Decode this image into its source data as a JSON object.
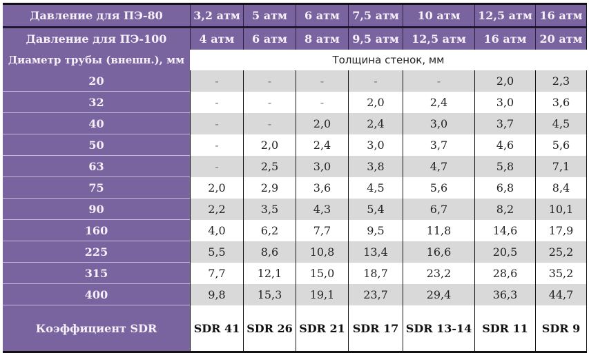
{
  "header": {
    "pe80_label": "Давление для ПЭ-80",
    "pe80_values": [
      "3,2 атм",
      "5 атм",
      "6 атм",
      "7,5 атм",
      "10 атм",
      "12,5 атм",
      "16 атм"
    ],
    "pe100_label": "Давление для ПЭ-100",
    "pe100_values": [
      "4 атм",
      "6 атм",
      "8 атм",
      "9,5 атм",
      "12,5 атм",
      "16 атм",
      "20 атм"
    ],
    "diameter_label": "Диаметр трубы (внешн.), мм",
    "thickness_label": "Толщина стенок, мм"
  },
  "rows": [
    {
      "d": "20",
      "v": [
        "-",
        "-",
        "-",
        "-",
        "-",
        "2,0",
        "2,3"
      ]
    },
    {
      "d": "32",
      "v": [
        "-",
        "-",
        "-",
        "2,0",
        "2,4",
        "3,0",
        "3,6"
      ]
    },
    {
      "d": "40",
      "v": [
        "-",
        "-",
        "2,0",
        "2,4",
        "3,0",
        "3,7",
        "4,5"
      ]
    },
    {
      "d": "50",
      "v": [
        "-",
        "2,0",
        "2,4",
        "3,0",
        "3,7",
        "4,6",
        "5,6"
      ]
    },
    {
      "d": "63",
      "v": [
        "-",
        "2,5",
        "3,0",
        "3,8",
        "4,7",
        "5,8",
        "7,1"
      ]
    },
    {
      "d": "75",
      "v": [
        "2,0",
        "2,9",
        "3,6",
        "4,5",
        "5,6",
        "6,8",
        "8,4"
      ]
    },
    {
      "d": "90",
      "v": [
        "2,2",
        "3,5",
        "4,3",
        "5,4",
        "6,7",
        "8,2",
        "10,1"
      ]
    },
    {
      "d": "160",
      "v": [
        "4,0",
        "6,2",
        "7,7",
        "9,5",
        "11,8",
        "14,6",
        "17,9"
      ]
    },
    {
      "d": "225",
      "v": [
        "5,5",
        "8,6",
        "10,8",
        "13,4",
        "16,6",
        "20,5",
        "25,2"
      ]
    },
    {
      "d": "315",
      "v": [
        "7,7",
        "12,1",
        "15,0",
        "18,7",
        "23,2",
        "28,6",
        "35,2"
      ]
    },
    {
      "d": "400",
      "v": [
        "9,8",
        "15,3",
        "19,1",
        "23,7",
        "29,4",
        "36,3",
        "44,7"
      ]
    }
  ],
  "sdr": {
    "label": "Коэффициент SDR",
    "values": [
      "SDR 41",
      "SDR 26",
      "SDR 21",
      "SDR 17",
      "SDR 13-14",
      "SDR 11",
      "SDR 9"
    ]
  },
  "colors": {
    "header_purple": "#7a64a0",
    "header_text": "#f6f0fa",
    "row_gray": "#d9d9d9",
    "row_white": "#ffffff"
  }
}
